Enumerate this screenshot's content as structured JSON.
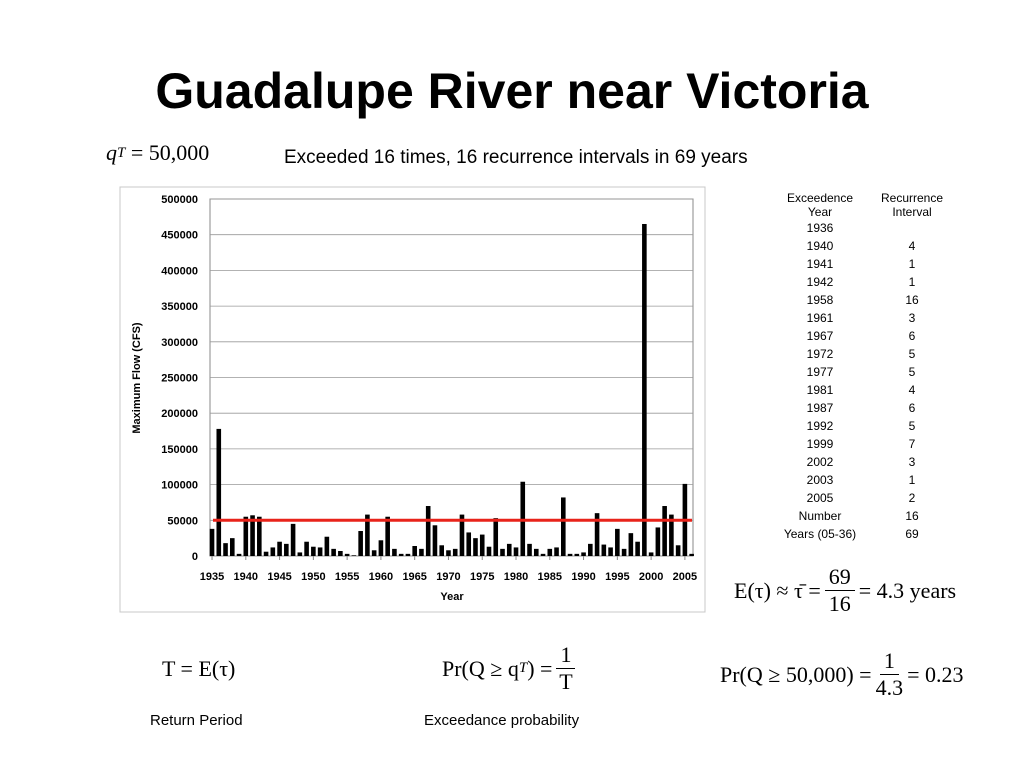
{
  "title": "Guadalupe River near Victoria",
  "subtitle": "Exceeded 16 times, 16 recurrence intervals in 69 years",
  "top_formula": {
    "var": "q",
    "sub": "T",
    "rhs": "= 50,000"
  },
  "mean_formula": {
    "lhs": "E(τ) ≈ τ̄ =",
    "num": "69",
    "den": "16",
    "rhs": "= 4.3 years"
  },
  "return_period": {
    "formula": "T = E(τ)",
    "caption": "Return Period"
  },
  "exceedance": {
    "lhs": "Pr(Q ≥ q",
    "sub": "T",
    "mid": ") =",
    "num": "1",
    "den": "T",
    "caption": "Exceedance probability"
  },
  "probability_formula": {
    "lhs": "Pr(Q ≥ 50,000) =",
    "num": "1",
    "den": "4.3",
    "rhs": "= 0.23"
  },
  "table": {
    "header": [
      "Exceedence Year",
      "Recurrence Interval"
    ],
    "rows": [
      [
        "1936",
        null
      ],
      [
        "1940",
        "4"
      ],
      [
        "1941",
        "1"
      ],
      [
        "1942",
        "1"
      ],
      [
        "1958",
        "16"
      ],
      [
        "1961",
        "3"
      ],
      [
        "1967",
        "6"
      ],
      [
        "1972",
        "5"
      ],
      [
        "1977",
        "5"
      ],
      [
        "1981",
        "4"
      ],
      [
        "1987",
        "6"
      ],
      [
        "1992",
        "5"
      ],
      [
        "1999",
        "7"
      ],
      [
        "2002",
        "3"
      ],
      [
        "2003",
        "1"
      ],
      [
        "2005",
        "2"
      ],
      [
        "Number",
        "16"
      ],
      [
        "Years (05-36)",
        "69"
      ]
    ]
  },
  "chart_data": {
    "type": "bar",
    "x_label": "Year",
    "y_label": "Maximum Flow (CFS)",
    "color": "#000000",
    "x": [
      1935,
      1936,
      1937,
      1938,
      1939,
      1940,
      1941,
      1942,
      1943,
      1944,
      1945,
      1946,
      1947,
      1948,
      1949,
      1950,
      1951,
      1952,
      1953,
      1954,
      1955,
      1956,
      1957,
      1958,
      1959,
      1960,
      1961,
      1962,
      1963,
      1964,
      1965,
      1966,
      1967,
      1968,
      1969,
      1970,
      1971,
      1972,
      1973,
      1974,
      1975,
      1976,
      1977,
      1978,
      1979,
      1980,
      1981,
      1982,
      1983,
      1984,
      1985,
      1986,
      1987,
      1988,
      1989,
      1990,
      1991,
      1992,
      1993,
      1994,
      1995,
      1996,
      1997,
      1998,
      1999,
      2000,
      2001,
      2002,
      2003,
      2004,
      2005,
      2006
    ],
    "values": [
      38000,
      178000,
      18000,
      25000,
      3000,
      55000,
      57000,
      55000,
      6000,
      12000,
      20000,
      17000,
      45000,
      5000,
      20000,
      13000,
      12000,
      27000,
      10000,
      7000,
      3000,
      1000,
      35000,
      58000,
      8000,
      22000,
      55000,
      10000,
      3000,
      3000,
      14000,
      10000,
      70000,
      43000,
      15000,
      8000,
      10000,
      58000,
      33000,
      25000,
      30000,
      13000,
      53000,
      10000,
      17000,
      12000,
      104000,
      17000,
      10000,
      3000,
      10000,
      12000,
      82000,
      3000,
      3000,
      5000,
      17000,
      60000,
      16000,
      12000,
      38000,
      10000,
      32000,
      20000,
      465000,
      5000,
      40000,
      70000,
      58000,
      15000,
      101000,
      3000
    ],
    "xlim": [
      1934.7,
      2006.2
    ],
    "xticks": [
      1935,
      1940,
      1945,
      1950,
      1955,
      1960,
      1965,
      1970,
      1975,
      1980,
      1985,
      1990,
      1995,
      2000,
      2005
    ],
    "ylim": [
      0,
      500000
    ],
    "yticks": [
      0,
      50000,
      100000,
      150000,
      200000,
      250000,
      300000,
      350000,
      400000,
      450000,
      500000
    ],
    "grid": true,
    "threshold": 50000,
    "threshold_color": "#e8231a"
  }
}
